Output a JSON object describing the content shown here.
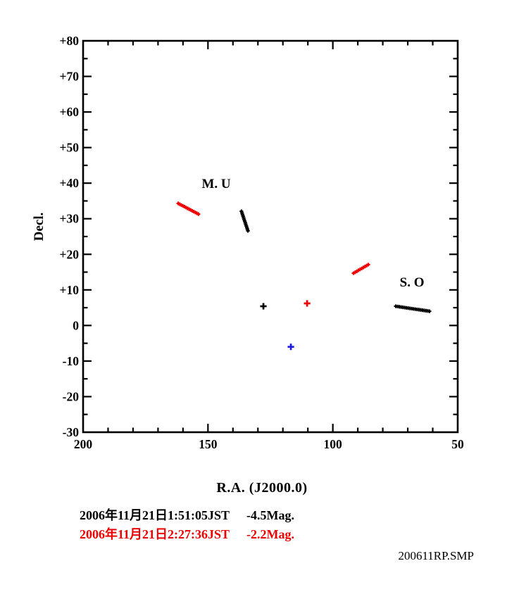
{
  "figure": {
    "background": "#ffffff",
    "file_label": "200611RP.SMP"
  },
  "chart_data": {
    "type": "scatter",
    "title": "",
    "xlabel": "R.A.  (J2000.0)",
    "ylabel": "Decl.",
    "xlim": [
      200,
      50
    ],
    "ylim": [
      -30,
      80
    ],
    "x_axis_reversed": true,
    "grid": false,
    "legend": "none",
    "x_axis": {
      "major_ticks": [
        200,
        150,
        100,
        50
      ],
      "tick_labels": [
        "200",
        "150",
        "100",
        "50"
      ],
      "minor_step": 10
    },
    "y_axis": {
      "major_ticks": [
        80,
        70,
        60,
        50,
        40,
        30,
        20,
        10,
        0,
        -10,
        -20,
        -30
      ],
      "tick_labels": [
        "+80",
        "+70",
        "+60",
        "+50",
        "+40",
        "+30",
        "+20",
        "+10",
        "0",
        "-10",
        "-20",
        "-30"
      ],
      "minor_step": 5
    },
    "annotations": [
      {
        "text": "M. U",
        "x": 146.7,
        "y": 40.0
      },
      {
        "text": "S. O",
        "x": 68.3,
        "y": 12.3
      }
    ],
    "series": [
      {
        "name": "meteor-trail-red-1",
        "color": "#ee0000",
        "marker": "plus-small",
        "trail": {
          "from": [
            161.9,
            34.3
          ],
          "to": [
            153.8,
            31.3
          ],
          "n": 14
        }
      },
      {
        "name": "meteor-trail-black-1",
        "color": "#000000",
        "marker": "plus-small",
        "trail": {
          "from": [
            136.6,
            32.1
          ],
          "to": [
            134.0,
            26.6
          ],
          "n": 13
        }
      },
      {
        "name": "meteor-trail-red-2",
        "color": "#ee0000",
        "marker": "plus-small",
        "trail": {
          "from": [
            91.7,
            14.7
          ],
          "to": [
            85.8,
            17.1
          ],
          "n": 10
        }
      },
      {
        "name": "meteor-trail-black-2",
        "color": "#000000",
        "marker": "plus-small",
        "trail": {
          "from": [
            74.8,
            5.4
          ],
          "to": [
            61.3,
            4.0
          ],
          "n": 20
        }
      }
    ],
    "points": [
      {
        "name": "radiant-cross-black",
        "color": "#000000",
        "marker": "plus",
        "x": 127.8,
        "y": 5.4
      },
      {
        "name": "radiant-cross-red",
        "color": "#ee0000",
        "marker": "plus",
        "x": 110.3,
        "y": 6.2
      },
      {
        "name": "radiant-cross-blue",
        "color": "#1a1ae6",
        "marker": "plus",
        "x": 116.8,
        "y": -6.0
      }
    ]
  },
  "observations": [
    {
      "datetime": "2006年11月21日1:51:05JST",
      "magnitude": "-4.5Mag.",
      "color": "#000000"
    },
    {
      "datetime": "2006年11月21日2:27:36JST",
      "magnitude": "-2.2Mag.",
      "color": "#ee0000"
    }
  ]
}
